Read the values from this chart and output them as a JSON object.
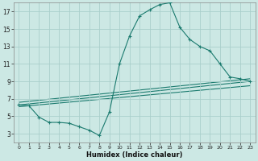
{
  "bg_color": "#cce8e4",
  "grid_color": "#aacfcb",
  "line_color": "#1a7a6e",
  "xlabel": "Humidex (Indice chaleur)",
  "xlim": [
    -0.5,
    23.5
  ],
  "ylim": [
    2,
    18
  ],
  "xticks": [
    0,
    1,
    2,
    3,
    4,
    5,
    6,
    7,
    8,
    9,
    10,
    11,
    12,
    13,
    14,
    15,
    16,
    17,
    18,
    19,
    20,
    21,
    22,
    23
  ],
  "yticks": [
    3,
    5,
    7,
    9,
    11,
    13,
    15,
    17
  ],
  "line1_x": [
    0,
    1,
    2,
    3,
    4,
    5,
    6,
    7,
    8,
    9,
    10,
    11,
    12,
    13,
    14,
    15,
    16,
    17,
    18,
    19,
    20,
    21,
    22,
    23
  ],
  "line1_y": [
    6.3,
    6.2,
    4.9,
    4.3,
    4.3,
    4.2,
    3.8,
    3.4,
    2.8,
    5.5,
    11.0,
    14.2,
    16.5,
    17.2,
    17.8,
    18.0,
    15.2,
    13.8,
    13.0,
    12.5,
    11.0,
    9.5,
    9.3,
    9.0
  ],
  "line2_x": [
    0,
    23
  ],
  "line2_y": [
    6.3,
    9.0
  ],
  "line3_x": [
    0,
    23
  ],
  "line3_y": [
    6.6,
    9.3
  ],
  "line4_x": [
    0,
    23
  ],
  "line4_y": [
    6.1,
    8.5
  ]
}
